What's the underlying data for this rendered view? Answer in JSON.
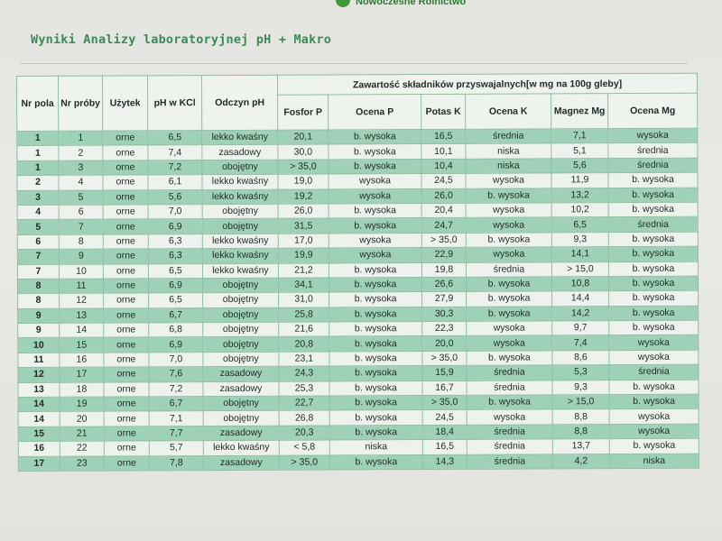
{
  "brand": {
    "name": "Nowoczesne Rolnictwo"
  },
  "title": "Wyniki Analizy laboratoryjnej pH + Makro",
  "table": {
    "group_header": "Zawartość składników przyswajalnych[w mg na 100g gleby]",
    "headers": {
      "nr_pola": "Nr pola",
      "nr_proby": "Nr próby",
      "uzytek": "Użytek",
      "ph_kcl": "pH w KCl",
      "odczyn": "Odczyn pH",
      "fosfor": "Fosfor P",
      "ocena_p": "Ocena P",
      "potas": "Potas K",
      "ocena_k": "Ocena K",
      "magnez": "Magnez Mg",
      "ocena_mg": "Ocena Mg"
    },
    "rows": [
      [
        "1",
        "1",
        "orne",
        "6,5",
        "lekko kwaśny",
        "20,1",
        "b. wysoka",
        "16,5",
        "średnia",
        "7,1",
        "wysoka"
      ],
      [
        "1",
        "2",
        "orne",
        "7,4",
        "zasadowy",
        "30,0",
        "b. wysoka",
        "10,1",
        "niska",
        "5,1",
        "średnia"
      ],
      [
        "1",
        "3",
        "orne",
        "7,2",
        "obojętny",
        "> 35,0",
        "b. wysoka",
        "10,4",
        "niska",
        "5,6",
        "średnia"
      ],
      [
        "2",
        "4",
        "orne",
        "6,1",
        "lekko kwaśny",
        "19,0",
        "wysoka",
        "24,5",
        "wysoka",
        "11,9",
        "b. wysoka"
      ],
      [
        "3",
        "5",
        "orne",
        "5,6",
        "lekko kwaśny",
        "19,2",
        "wysoka",
        "26,0",
        "b. wysoka",
        "13,2",
        "b. wysoka"
      ],
      [
        "4",
        "6",
        "orne",
        "7,0",
        "obojętny",
        "26,0",
        "b. wysoka",
        "20,4",
        "wysoka",
        "10,2",
        "b. wysoka"
      ],
      [
        "5",
        "7",
        "orne",
        "6,9",
        "obojętny",
        "31,5",
        "b. wysoka",
        "24,7",
        "wysoka",
        "6,5",
        "średnia"
      ],
      [
        "6",
        "8",
        "orne",
        "6,3",
        "lekko kwaśny",
        "17,0",
        "wysoka",
        "> 35,0",
        "b. wysoka",
        "9,3",
        "b. wysoka"
      ],
      [
        "7",
        "9",
        "orne",
        "6,3",
        "lekko kwaśny",
        "19,9",
        "wysoka",
        "22,9",
        "wysoka",
        "14,1",
        "b. wysoka"
      ],
      [
        "7",
        "10",
        "orne",
        "6,5",
        "lekko kwaśny",
        "21,2",
        "b. wysoka",
        "19,8",
        "średnia",
        "> 15,0",
        "b. wysoka"
      ],
      [
        "8",
        "11",
        "orne",
        "6,9",
        "obojętny",
        "34,1",
        "b. wysoka",
        "26,6",
        "b. wysoka",
        "10,8",
        "b. wysoka"
      ],
      [
        "8",
        "12",
        "orne",
        "6,5",
        "obojętny",
        "31,0",
        "b. wysoka",
        "27,9",
        "b. wysoka",
        "14,4",
        "b. wysoka"
      ],
      [
        "9",
        "13",
        "orne",
        "6,7",
        "obojętny",
        "25,8",
        "b. wysoka",
        "30,3",
        "b. wysoka",
        "14,2",
        "b. wysoka"
      ],
      [
        "9",
        "14",
        "orne",
        "6,8",
        "obojętny",
        "21,6",
        "b. wysoka",
        "22,3",
        "wysoka",
        "9,7",
        "b. wysoka"
      ],
      [
        "10",
        "15",
        "orne",
        "6,9",
        "obojętny",
        "20,8",
        "b. wysoka",
        "20,0",
        "wysoka",
        "7,4",
        "wysoka"
      ],
      [
        "11",
        "16",
        "orne",
        "7,0",
        "obojętny",
        "23,1",
        "b. wysoka",
        "> 35,0",
        "b. wysoka",
        "8,6",
        "wysoka"
      ],
      [
        "12",
        "17",
        "orne",
        "7,6",
        "zasadowy",
        "24,3",
        "b. wysoka",
        "15,9",
        "średnia",
        "5,3",
        "średnia"
      ],
      [
        "13",
        "18",
        "orne",
        "7,2",
        "zasadowy",
        "25,3",
        "b. wysoka",
        "16,7",
        "średnia",
        "9,3",
        "b. wysoka"
      ],
      [
        "14",
        "19",
        "orne",
        "6,7",
        "obojętny",
        "22,7",
        "b. wysoka",
        "> 35,0",
        "b. wysoka",
        "> 15,0",
        "b. wysoka"
      ],
      [
        "14",
        "20",
        "orne",
        "7,1",
        "obojętny",
        "26,8",
        "b. wysoka",
        "24,5",
        "wysoka",
        "8,8",
        "wysoka"
      ],
      [
        "15",
        "21",
        "orne",
        "7,7",
        "zasadowy",
        "20,3",
        "b. wysoka",
        "18,4",
        "średnia",
        "8,8",
        "wysoka"
      ],
      [
        "16",
        "22",
        "orne",
        "5,7",
        "lekko kwaśny",
        "< 5,8",
        "niska",
        "16,5",
        "średnia",
        "13,7",
        "b. wysoka"
      ],
      [
        "17",
        "23",
        "orne",
        "7,8",
        "zasadowy",
        "> 35,0",
        "b. wysoka",
        "14,3",
        "średnia",
        "4,2",
        "niska"
      ]
    ]
  }
}
